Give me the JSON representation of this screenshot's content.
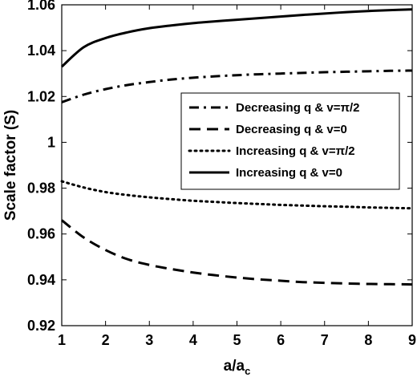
{
  "chart_data": {
    "type": "line",
    "xlabel": "a/a",
    "xlabel_sub": "c",
    "ylabel": "Scale factor (S)",
    "xlim": [
      1,
      9
    ],
    "ylim": [
      0.92,
      1.06
    ],
    "xticks": [
      "1",
      "2",
      "3",
      "4",
      "5",
      "6",
      "7",
      "8",
      "9"
    ],
    "yticks": [
      "0.92",
      "0.94",
      "0.96",
      "0.98",
      "1",
      "1.02",
      "1.04",
      "1.06"
    ],
    "grid": false,
    "legend_position": "right-middle",
    "series": [
      {
        "name": "Decreasing q & v=π/2",
        "style": "dashdot",
        "x": [
          1,
          1.5,
          2,
          2.5,
          3,
          3.5,
          4,
          4.5,
          5,
          5.5,
          6,
          6.5,
          7,
          7.5,
          8,
          8.5,
          9
        ],
        "y": [
          1.0175,
          1.0208,
          1.0232,
          1.025,
          1.0263,
          1.0274,
          1.0282,
          1.0288,
          1.0293,
          1.0297,
          1.03,
          1.0303,
          1.0306,
          1.0308,
          1.031,
          1.0312,
          1.0313
        ]
      },
      {
        "name": "Decreasing q & v=0",
        "style": "dashed",
        "x": [
          1,
          1.5,
          2,
          2.5,
          3,
          3.5,
          4,
          4.5,
          5,
          5.5,
          6,
          6.5,
          7,
          7.5,
          8,
          8.5,
          9
        ],
        "y": [
          0.966,
          0.9585,
          0.953,
          0.949,
          0.9465,
          0.9447,
          0.9432,
          0.942,
          0.941,
          0.9402,
          0.9396,
          0.939,
          0.9387,
          0.9384,
          0.9382,
          0.9381,
          0.938
        ]
      },
      {
        "name": "Increasing q & v=π/2",
        "style": "dotted",
        "x": [
          1,
          1.5,
          2,
          2.5,
          3,
          3.5,
          4,
          4.5,
          5,
          5.5,
          6,
          6.5,
          7,
          7.5,
          8,
          8.5,
          9
        ],
        "y": [
          0.983,
          0.9803,
          0.9783,
          0.977,
          0.976,
          0.9752,
          0.9745,
          0.974,
          0.9735,
          0.9731,
          0.9727,
          0.9724,
          0.9721,
          0.9719,
          0.9716,
          0.9714,
          0.9712
        ]
      },
      {
        "name": "Increasing q & v=0",
        "style": "solid",
        "x": [
          1,
          1.5,
          2,
          2.5,
          3,
          3.5,
          4,
          4.5,
          5,
          5.5,
          6,
          6.5,
          7,
          7.5,
          8,
          8.5,
          9
        ],
        "y": [
          1.033,
          1.0415,
          1.0455,
          1.048,
          1.0498,
          1.051,
          1.052,
          1.0528,
          1.0535,
          1.0542,
          1.0549,
          1.0556,
          1.0562,
          1.0568,
          1.0573,
          1.0577,
          1.058
        ]
      }
    ]
  }
}
